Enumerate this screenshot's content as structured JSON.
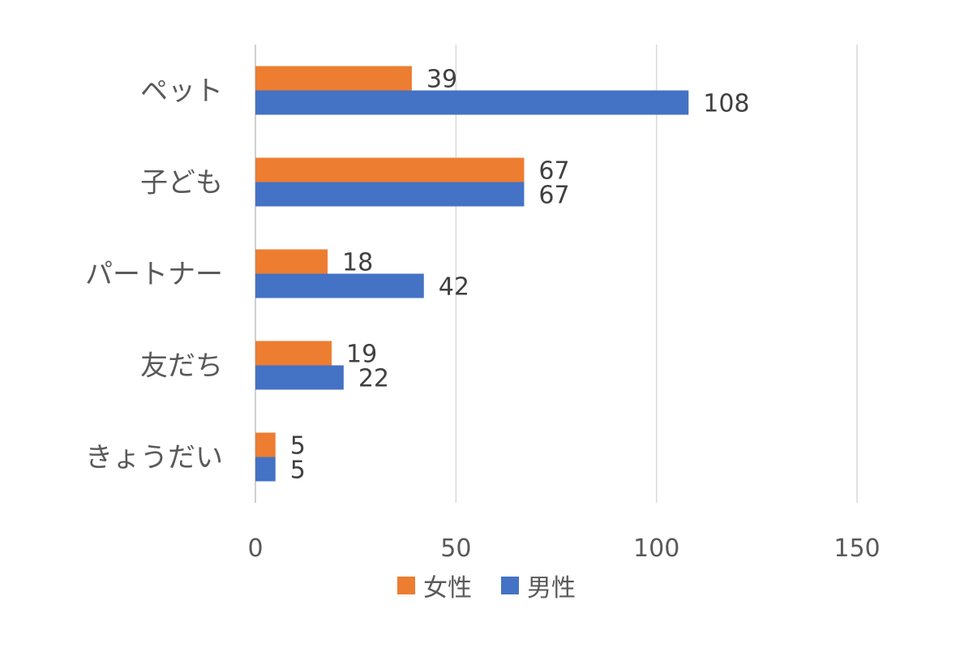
{
  "chart_data": {
    "type": "bar",
    "orientation": "horizontal",
    "categories": [
      "ペット",
      "子ども",
      "パートナー",
      "友だち",
      "きょうだい"
    ],
    "series": [
      {
        "name": "女性",
        "values": [
          39,
          67,
          18,
          19,
          5
        ],
        "color": "#ED7D31"
      },
      {
        "name": "男性",
        "values": [
          108,
          67,
          42,
          22,
          5
        ],
        "color": "#4472C4"
      }
    ],
    "xlim": [
      0,
      150
    ],
    "xticks": [
      0,
      50,
      100,
      150
    ],
    "xtick_labels": [
      "0",
      "50",
      "100",
      "150"
    ],
    "grid": "vertical",
    "data_labels": true,
    "legend_position": "bottom"
  }
}
